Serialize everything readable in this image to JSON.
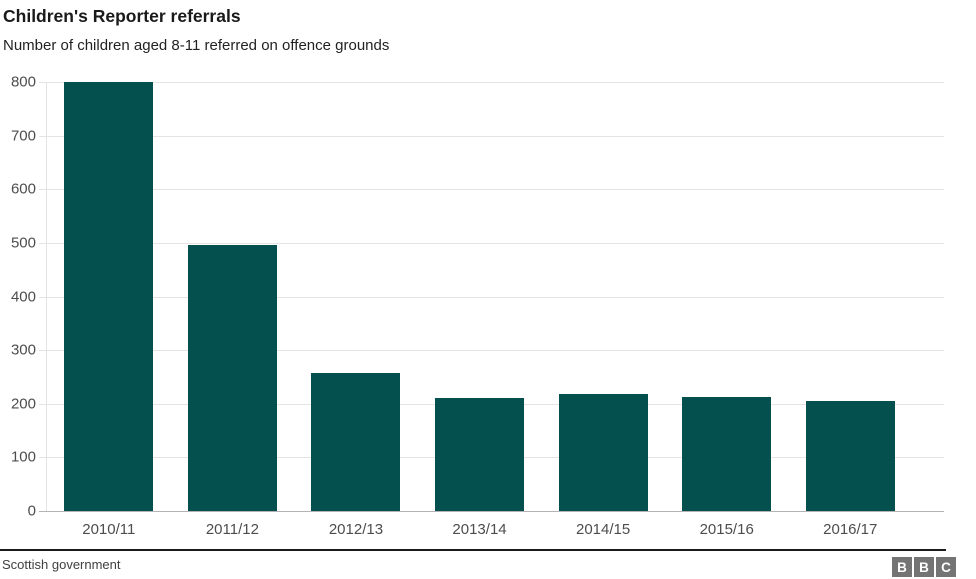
{
  "header": {
    "title": "Children's Reporter referrals",
    "subtitle": "Number of children aged 8-11 referred on offence grounds"
  },
  "footer": {
    "source": "Scottish government",
    "logo_letters": [
      "B",
      "B",
      "C"
    ]
  },
  "colors": {
    "bar": "#04504f",
    "gridline": "#e4e4e4",
    "baseline": "#b3b3b3",
    "axis_line": "#e4e4e4",
    "tick_label": "#4d4d4d",
    "title": "#1a1a1a",
    "subtitle": "#222222",
    "source_text": "#404040",
    "divider": "#1a1a1a",
    "logo_block": "#747474"
  },
  "chart_data": {
    "type": "bar",
    "title": "Children's Reporter referrals",
    "subtitle": "Number of children aged 8-11 referred on offence grounds",
    "categories": [
      "2010/11",
      "2011/12",
      "2012/13",
      "2013/14",
      "2014/15",
      "2015/16",
      "2016/17"
    ],
    "values": [
      800,
      496,
      257,
      210,
      219,
      212,
      205
    ],
    "xlabel": "",
    "ylabel": "",
    "ylim": [
      0,
      800
    ],
    "yticks": [
      0,
      100,
      200,
      300,
      400,
      500,
      600,
      700,
      800
    ],
    "grid": "horizontal",
    "legend": "none",
    "source": "Scottish government"
  }
}
